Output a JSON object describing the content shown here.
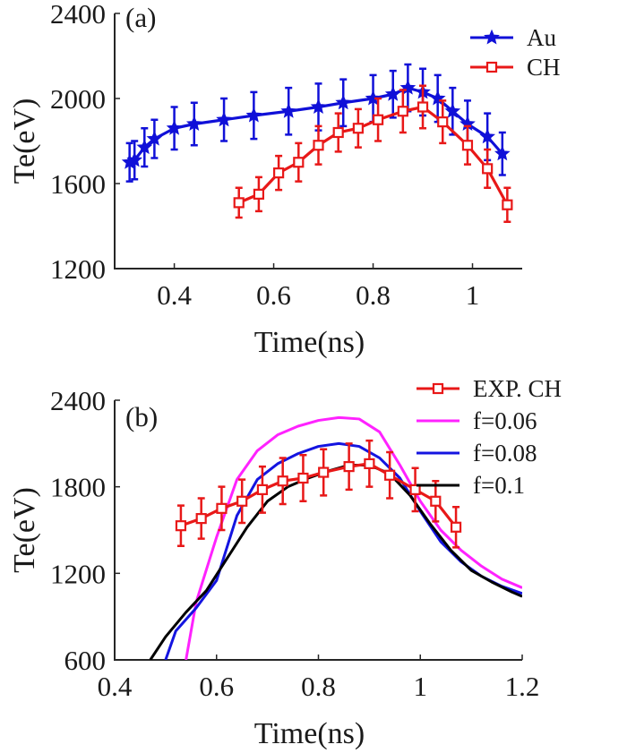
{
  "chart_data": [
    {
      "type": "line",
      "panel_label": "(a)",
      "xlabel": "Time(ns)",
      "ylabel": "Te(eV)",
      "xlim": [
        0.28,
        1.1
      ],
      "ylim": [
        1200,
        2400
      ],
      "xticks": [
        0.4,
        0.6,
        0.8,
        1.0
      ],
      "xtick_labels": [
        "0.4",
        "0.6",
        "0.8",
        "1"
      ],
      "yticks": [
        1200,
        1600,
        2000,
        2400
      ],
      "ytick_labels": [
        "1200",
        "1600",
        "2000",
        "2400"
      ],
      "grid": false,
      "legend_position": "top-right",
      "series": [
        {
          "name": "Au",
          "color": "#1010d8",
          "marker": "star",
          "x": [
            0.31,
            0.32,
            0.34,
            0.36,
            0.4,
            0.44,
            0.5,
            0.56,
            0.63,
            0.69,
            0.74,
            0.8,
            0.84,
            0.87,
            0.9,
            0.93,
            0.96,
            0.99,
            1.03,
            1.06
          ],
          "y": [
            1700,
            1710,
            1770,
            1810,
            1860,
            1880,
            1900,
            1920,
            1940,
            1960,
            1980,
            2000,
            2020,
            2050,
            2030,
            2000,
            1940,
            1880,
            1820,
            1740
          ],
          "err": [
            90,
            90,
            90,
            90,
            100,
            100,
            100,
            110,
            110,
            110,
            110,
            110,
            110,
            110,
            110,
            110,
            110,
            110,
            110,
            100
          ]
        },
        {
          "name": "CH",
          "color": "#e81818",
          "marker": "square",
          "x": [
            0.53,
            0.57,
            0.61,
            0.65,
            0.69,
            0.73,
            0.77,
            0.81,
            0.86,
            0.9,
            0.94,
            0.99,
            1.03,
            1.07
          ],
          "y": [
            1510,
            1550,
            1650,
            1700,
            1780,
            1840,
            1860,
            1900,
            1940,
            1960,
            1890,
            1780,
            1670,
            1500
          ],
          "err": [
            70,
            80,
            80,
            90,
            90,
            90,
            90,
            100,
            100,
            100,
            100,
            90,
            90,
            80
          ]
        }
      ]
    },
    {
      "type": "line",
      "panel_label": "(b)",
      "xlabel": "Time(ns)",
      "ylabel": "Te(eV)",
      "xlim": [
        0.4,
        1.2
      ],
      "ylim": [
        600,
        2400
      ],
      "xticks": [
        0.4,
        0.6,
        0.8,
        1.0,
        1.2
      ],
      "xtick_labels": [
        "0.4",
        "0.6",
        "0.8",
        "1",
        "1.2"
      ],
      "yticks": [
        600,
        1200,
        1800,
        2400
      ],
      "ytick_labels": [
        "600",
        "1200",
        "1800",
        "2400"
      ],
      "grid": false,
      "legend_position": "top-right, outside",
      "series": [
        {
          "name": "EXP. CH",
          "color": "#e81818",
          "marker": "square",
          "x": [
            0.53,
            0.57,
            0.61,
            0.65,
            0.69,
            0.73,
            0.77,
            0.81,
            0.86,
            0.9,
            0.94,
            0.99,
            1.03,
            1.07
          ],
          "y": [
            1530,
            1580,
            1650,
            1700,
            1780,
            1840,
            1860,
            1900,
            1940,
            1960,
            1880,
            1780,
            1700,
            1520
          ],
          "err": [
            140,
            140,
            150,
            150,
            160,
            160,
            160,
            160,
            160,
            160,
            160,
            150,
            140,
            140
          ]
        },
        {
          "name": "f=0.06",
          "color": "#ff22ff",
          "marker": "none",
          "x": [
            0.54,
            0.56,
            0.6,
            0.64,
            0.68,
            0.72,
            0.76,
            0.8,
            0.84,
            0.88,
            0.92,
            0.96,
            1.0,
            1.04,
            1.08,
            1.12,
            1.16,
            1.2
          ],
          "y": [
            600,
            1000,
            1450,
            1850,
            2050,
            2160,
            2220,
            2260,
            2280,
            2270,
            2180,
            1950,
            1700,
            1500,
            1360,
            1250,
            1160,
            1100
          ]
        },
        {
          "name": "f=0.08",
          "color": "#1414e0",
          "marker": "none",
          "x": [
            0.5,
            0.52,
            0.56,
            0.6,
            0.64,
            0.68,
            0.72,
            0.76,
            0.8,
            0.84,
            0.88,
            0.92,
            0.96,
            1.0,
            1.04,
            1.08,
            1.12,
            1.16,
            1.2
          ],
          "y": [
            600,
            800,
            960,
            1150,
            1600,
            1850,
            1960,
            2030,
            2080,
            2100,
            2080,
            2000,
            1860,
            1630,
            1420,
            1280,
            1180,
            1110,
            1060
          ]
        },
        {
          "name": "f=0.1",
          "color": "#000000",
          "marker": "none",
          "x": [
            0.47,
            0.5,
            0.54,
            0.58,
            0.62,
            0.66,
            0.7,
            0.74,
            0.78,
            0.82,
            0.86,
            0.9,
            0.94,
            0.98,
            1.02,
            1.06,
            1.1,
            1.14,
            1.18,
            1.2
          ],
          "y": [
            600,
            760,
            930,
            1080,
            1300,
            1520,
            1700,
            1800,
            1860,
            1910,
            1950,
            1950,
            1890,
            1740,
            1540,
            1360,
            1220,
            1140,
            1070,
            1040
          ]
        }
      ]
    }
  ]
}
